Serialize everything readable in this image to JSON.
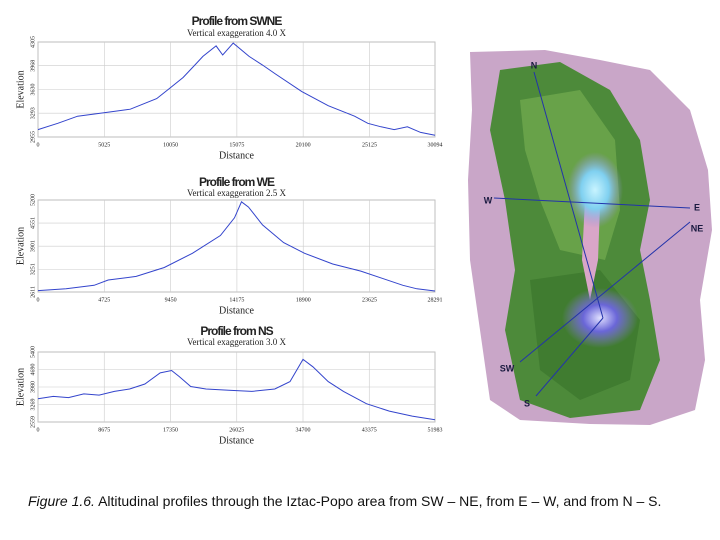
{
  "chart_data": [
    {
      "type": "line",
      "title": "Profile from SWNE",
      "subtitle": "Vertical exaggeration 4.0 X",
      "xlabel": "Distance",
      "ylabel": "Elevation",
      "color": "#3344cc",
      "grid": true,
      "x": [
        0,
        1500,
        3000,
        5000,
        7000,
        9000,
        10000,
        11000,
        12000,
        12500,
        13500,
        14000,
        14800,
        16000,
        17000,
        18000,
        20000,
        22000,
        24000,
        25000,
        26000,
        27000,
        28000,
        29000,
        30094
      ],
      "values": [
        3060,
        3150,
        3250,
        3300,
        3350,
        3500,
        3650,
        3800,
        4000,
        4100,
        4250,
        4120,
        4290,
        4100,
        3980,
        3850,
        3600,
        3400,
        3250,
        3150,
        3100,
        3060,
        3100,
        3020,
        2980
      ],
      "xlim": [
        0,
        30094
      ],
      "ylim": [
        2955,
        4305
      ],
      "xticks": [
        0,
        5025,
        10050,
        15075,
        20100,
        25125,
        30094
      ],
      "yticks": [
        2955,
        3293,
        3630,
        3968,
        4305
      ]
    },
    {
      "type": "line",
      "title": "Profile from WE",
      "subtitle": "Vertical exaggeration 2.5 X",
      "xlabel": "Distance",
      "ylabel": "Elevation",
      "color": "#3344cc",
      "grid": true,
      "x": [
        0,
        2000,
        4000,
        5000,
        7000,
        9000,
        11000,
        13000,
        14000,
        14500,
        15000,
        16000,
        17500,
        19000,
        21000,
        23000,
        24500,
        26000,
        27000,
        28291
      ],
      "values": [
        2650,
        2700,
        2800,
        2950,
        3050,
        3300,
        3700,
        4200,
        4700,
        5150,
        5000,
        4500,
        4000,
        3700,
        3400,
        3200,
        3000,
        2800,
        2700,
        2640
      ],
      "xlim": [
        0,
        28291
      ],
      "ylim": [
        2611,
        5200
      ],
      "xticks": [
        0,
        4725,
        9450,
        14175,
        18900,
        23625,
        28291
      ],
      "yticks": [
        2611,
        3251,
        3901,
        4551,
        5200
      ]
    },
    {
      "type": "line",
      "title": "Profile from NS",
      "subtitle": "Vertical exaggeration 3.0 X",
      "xlabel": "Distance",
      "ylabel": "Elevation",
      "color": "#3344cc",
      "grid": true,
      "x": [
        0,
        2000,
        4000,
        6000,
        8000,
        10000,
        12000,
        14000,
        16000,
        17500,
        18500,
        20000,
        22000,
        25000,
        28000,
        31000,
        33000,
        34700,
        36000,
        38000,
        40000,
        43000,
        46000,
        49000,
        51983
      ],
      "values": [
        3500,
        3600,
        3550,
        3700,
        3650,
        3800,
        3900,
        4100,
        4550,
        4650,
        4400,
        4000,
        3900,
        3850,
        3800,
        3900,
        4200,
        5100,
        4800,
        4200,
        3800,
        3300,
        3000,
        2800,
        2650
      ],
      "xlim": [
        0,
        51983
      ],
      "ylim": [
        2559,
        5400
      ],
      "xticks": [
        0,
        8675,
        17350,
        26025,
        34700,
        43375,
        51983
      ],
      "yticks": [
        2559,
        3269,
        3980,
        4690,
        5400
      ]
    }
  ],
  "map": {
    "labels": [
      "N",
      "W",
      "E",
      "NE",
      "SW",
      "S"
    ]
  },
  "caption": {
    "label": "Figure 1.6.",
    "text": "Altitudinal profiles through the Iztac-Popo area from SW – NE, from E – W, and from N – S."
  }
}
